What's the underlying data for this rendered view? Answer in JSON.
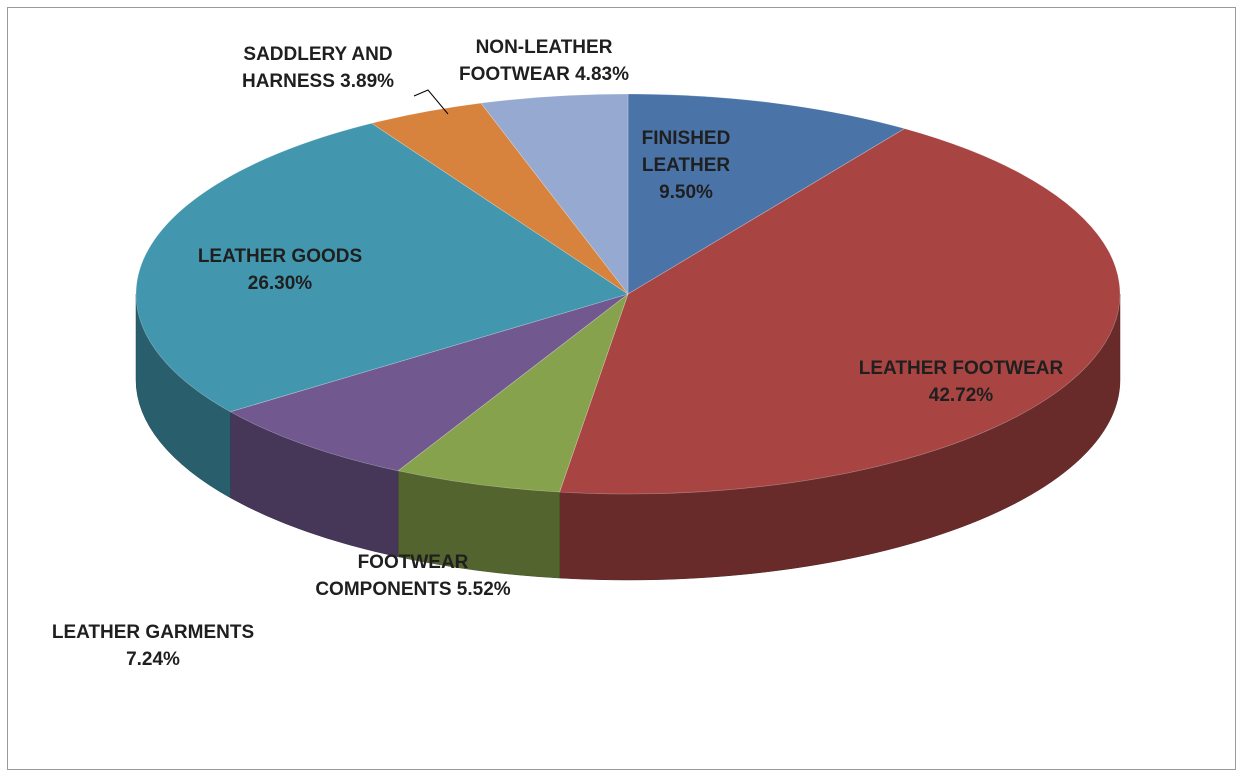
{
  "chart_data": {
    "type": "pie",
    "title": "",
    "style": "3d",
    "slices": [
      {
        "label_lines": [
          "FINISHED",
          "LEATHER",
          "9.50%"
        ],
        "category": "FINISHED LEATHER",
        "value": 9.5,
        "color": "#4A73A8"
      },
      {
        "label_lines": [
          "LEATHER FOOTWEAR",
          "42.72%"
        ],
        "category": "LEATHER FOOTWEAR",
        "value": 42.72,
        "color": "#A84543"
      },
      {
        "label_lines": [
          "FOOTWEAR",
          "COMPONENTS 5.52%"
        ],
        "category": "FOOTWEAR COMPONENTS",
        "value": 5.52,
        "color": "#87A24C"
      },
      {
        "label_lines": [
          "LEATHER GARMENTS",
          "7.24%"
        ],
        "category": "LEATHER GARMENTS",
        "value": 7.24,
        "color": "#71588F"
      },
      {
        "label_lines": [
          "LEATHER GOODS",
          "26.30%"
        ],
        "category": "LEATHER GOODS",
        "value": 26.3,
        "color": "#4297AE"
      },
      {
        "label_lines": [
          "SADDLERY AND",
          "HARNESS 3.89%"
        ],
        "category": "SADDLERY AND HARNESS",
        "value": 3.89,
        "color": "#D8833D"
      },
      {
        "label_lines": [
          "NON-LEATHER",
          "FOOTWEAR 4.83%"
        ],
        "category": "NON-LEATHER FOOTWEAR",
        "value": 4.83,
        "color": "#96A9D1"
      }
    ]
  }
}
